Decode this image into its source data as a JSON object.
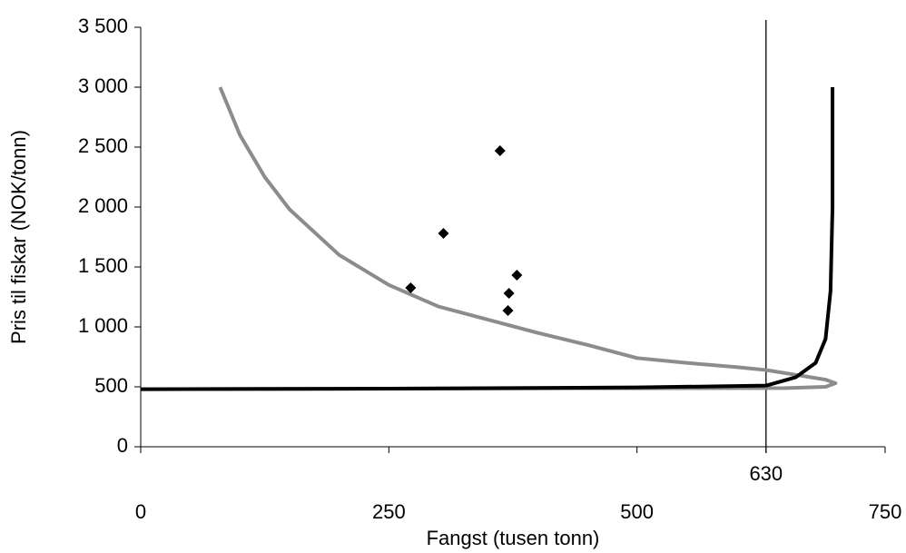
{
  "chart_data": {
    "type": "line",
    "xlabel": "Fangst (tusen tonn)",
    "ylabel": "Pris til fiskar (NOK/tonn)",
    "xlim": [
      0,
      750
    ],
    "xticks": [
      0,
      250,
      500,
      750
    ],
    "ylim": [
      0,
      3500
    ],
    "yticks": [
      {
        "value": 0,
        "label": "0"
      },
      {
        "value": 500,
        "label": "500"
      },
      {
        "value": 1000,
        "label": "1 000"
      },
      {
        "value": 1500,
        "label": "1 500"
      },
      {
        "value": 2000,
        "label": "2 000"
      },
      {
        "value": 2500,
        "label": "2 500"
      },
      {
        "value": 3000,
        "label": "3 000"
      },
      {
        "value": 3500,
        "label": "3 500"
      }
    ],
    "vline": 630,
    "series": [
      {
        "style": "line",
        "color": "#8c8c8c",
        "x": [
          80,
          100,
          125,
          150,
          200,
          250,
          300,
          350,
          400,
          450,
          500,
          550,
          600,
          630,
          660,
          690,
          700,
          690,
          650,
          500,
          250,
          0
        ],
        "values": [
          3000,
          2600,
          2250,
          1980,
          1600,
          1350,
          1170,
          1060,
          950,
          850,
          740,
          700,
          665,
          640,
          600,
          560,
          530,
          500,
          490,
          488,
          485,
          480
        ]
      },
      {
        "style": "line",
        "color": "#000000",
        "x": [
          0,
          250,
          500,
          630,
          660,
          680,
          690,
          695,
          697,
          697
        ],
        "values": [
          480,
          485,
          495,
          510,
          580,
          700,
          900,
          1300,
          2000,
          3000
        ]
      },
      {
        "style": "scatter",
        "color": "#000000",
        "x": [
          272,
          305,
          362,
          379,
          371,
          370
        ],
        "values": [
          1326,
          1780,
          2470,
          1432,
          1280,
          1136
        ]
      }
    ]
  }
}
